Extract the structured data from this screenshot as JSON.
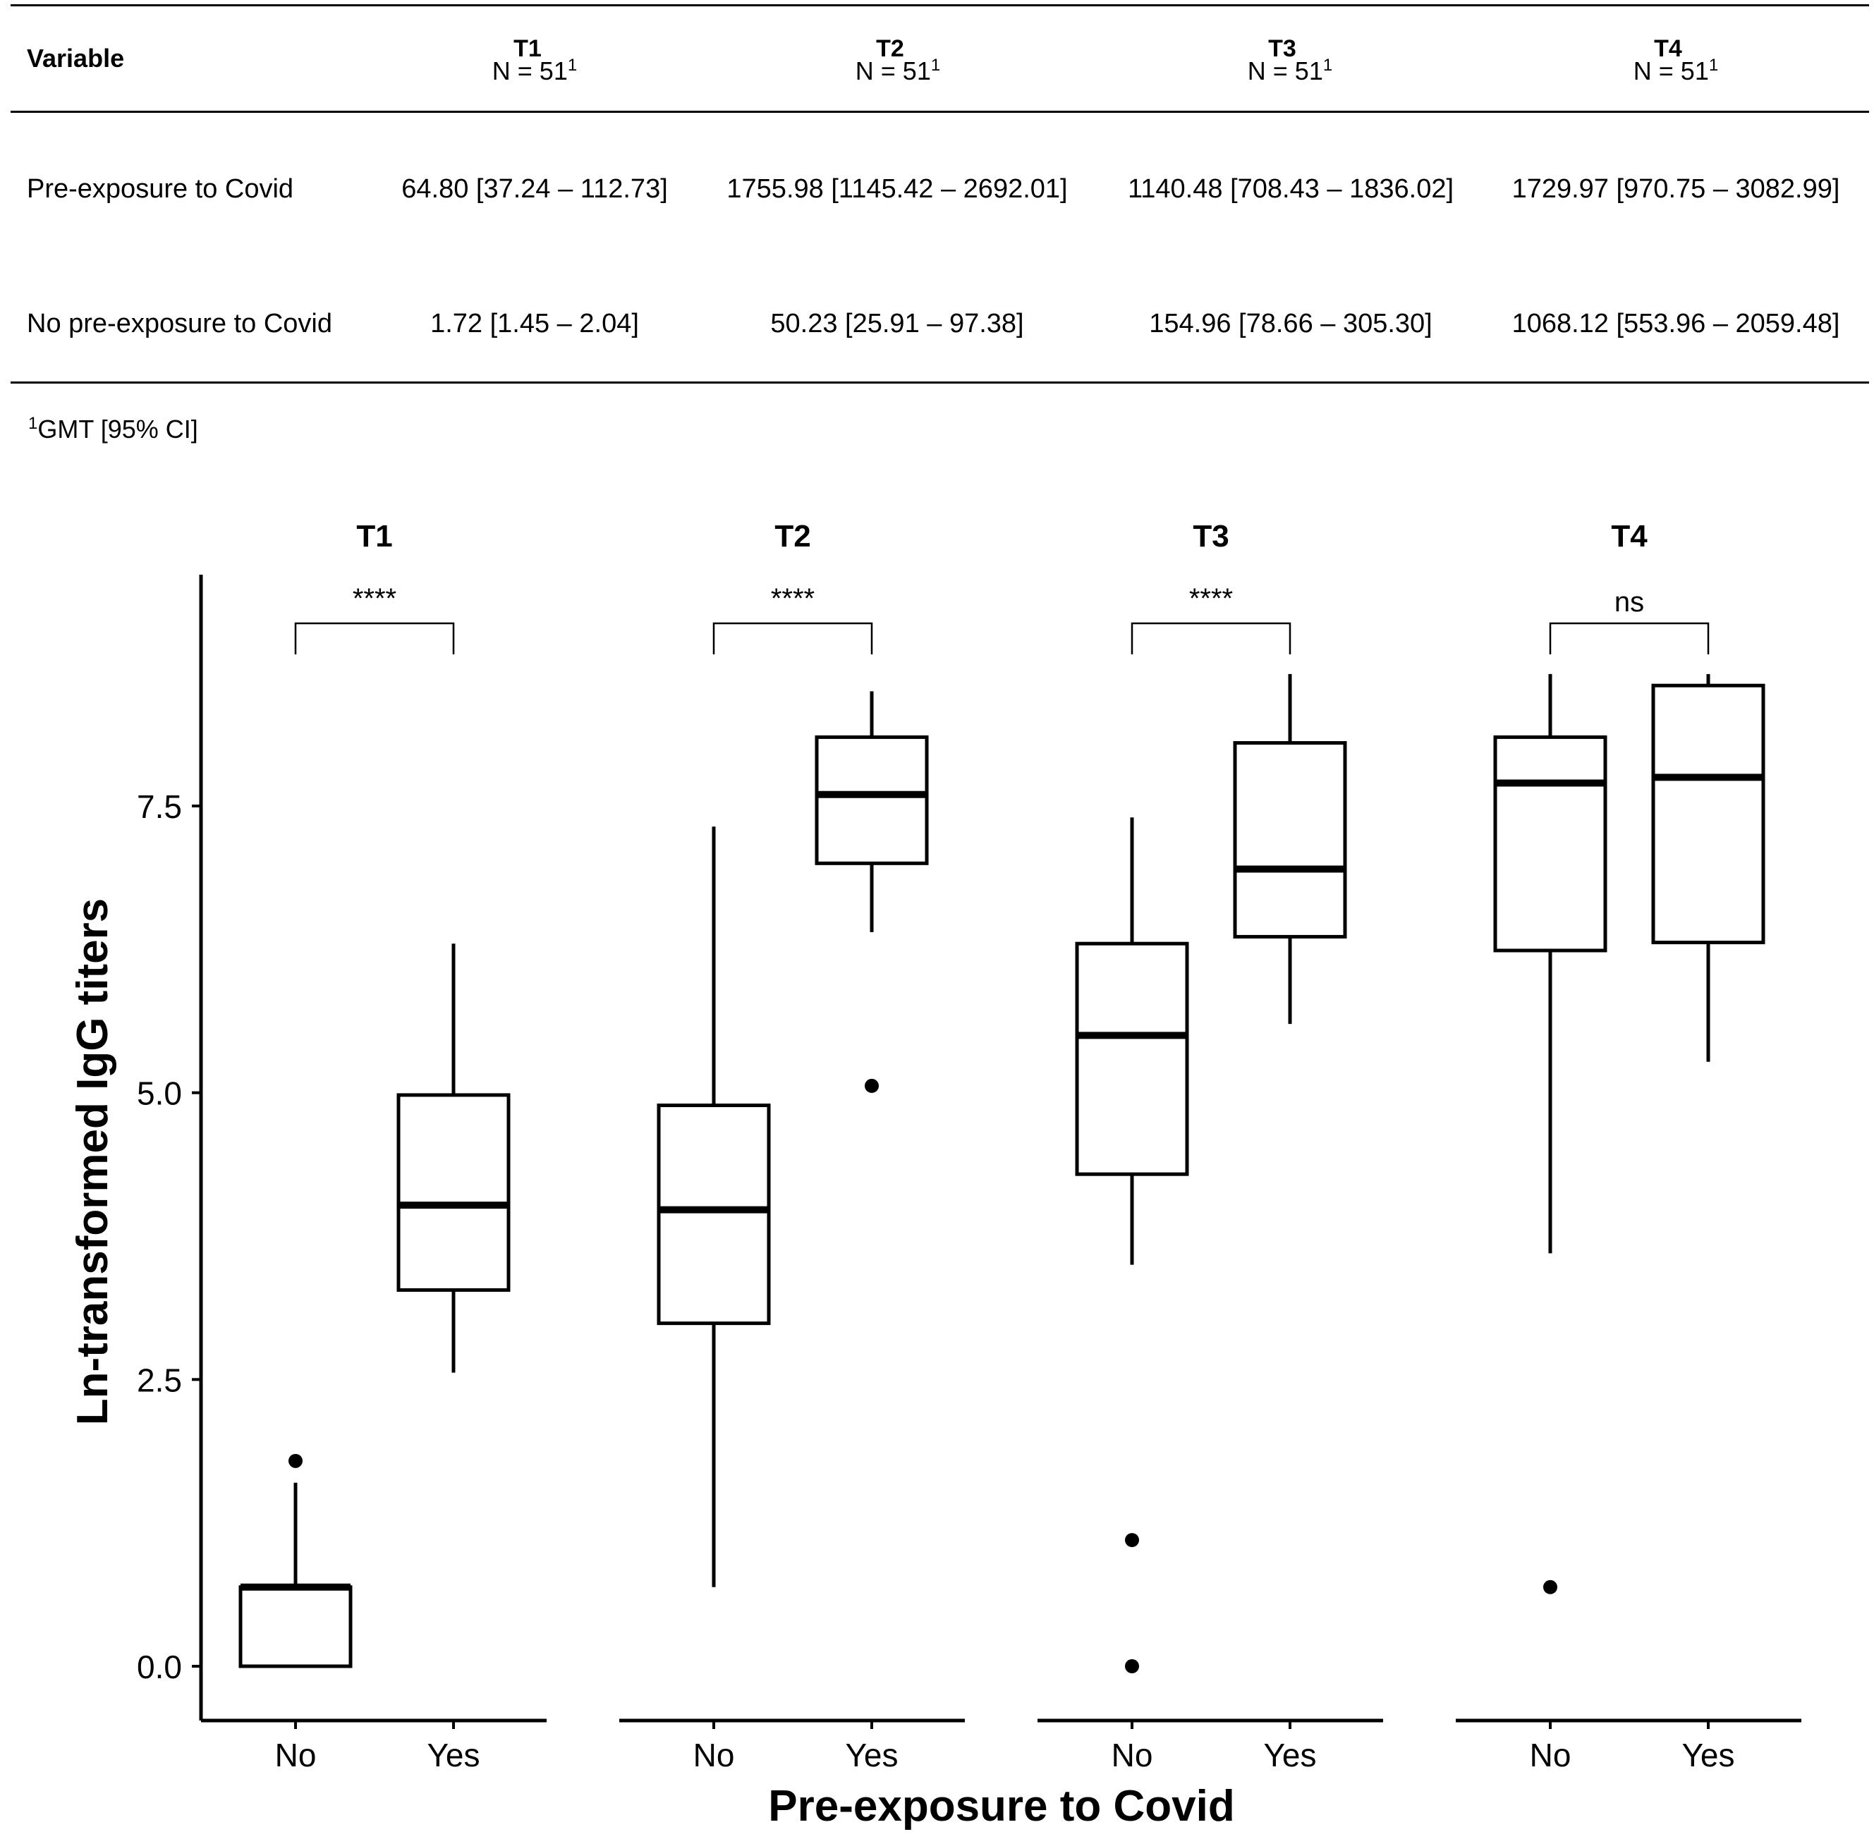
{
  "table": {
    "variable_header": "Variable",
    "n_text": "N = 51",
    "n_footnote_mark": "1",
    "groups": [
      "T1",
      "T2",
      "T3",
      "T4"
    ],
    "rows": [
      {
        "label": "Pre-exposure to Covid",
        "values": [
          "64.80 [37.24 – 112.73]",
          "1755.98 [1145.42 – 2692.01]",
          "1140.48 [708.43 – 1836.02]",
          "1729.97 [970.75 – 3082.99]"
        ]
      },
      {
        "label": "No pre-exposure to Covid",
        "values": [
          "1.72 [1.45 – 2.04]",
          "50.23 [25.91 – 97.38]",
          "154.96 [78.66 – 305.30]",
          "1068.12 [553.96 – 2059.48]"
        ]
      }
    ],
    "footnote_mark": "1",
    "footnote": "GMT [95% CI]"
  },
  "chart_data": {
    "type": "boxplot",
    "ylabel": "Ln-transformed IgG titers",
    "xlabel": "Pre-exposure to Covid",
    "ylim": [
      -0.45,
      9.55
    ],
    "yticks": [
      0.0,
      2.5,
      5.0,
      7.5
    ],
    "ytick_labels": [
      "0.0",
      "2.5",
      "5.0",
      "7.5"
    ],
    "categories": [
      "No",
      "Yes"
    ],
    "facets": [
      {
        "title": "T1",
        "significance": "****",
        "boxes": [
          {
            "category": "No",
            "whisker_low": 0.0,
            "q1": 0.0,
            "median": 0.69,
            "q3": 0.69,
            "whisker_high": 1.6,
            "outliers": [
              1.79
            ]
          },
          {
            "category": "Yes",
            "whisker_low": 2.56,
            "q1": 3.28,
            "median": 4.02,
            "q3": 4.98,
            "whisker_high": 6.3,
            "outliers": []
          }
        ]
      },
      {
        "title": "T2",
        "significance": "****",
        "boxes": [
          {
            "category": "No",
            "whisker_low": 0.69,
            "q1": 2.99,
            "median": 3.98,
            "q3": 4.89,
            "whisker_high": 7.32,
            "outliers": []
          },
          {
            "category": "Yes",
            "whisker_low": 6.4,
            "q1": 7.0,
            "median": 7.6,
            "q3": 8.1,
            "whisker_high": 8.5,
            "outliers": [
              5.06
            ]
          }
        ]
      },
      {
        "title": "T3",
        "significance": "****",
        "boxes": [
          {
            "category": "No",
            "whisker_low": 3.5,
            "q1": 4.29,
            "median": 5.5,
            "q3": 6.3,
            "whisker_high": 7.4,
            "outliers": [
              1.1,
              0.0
            ]
          },
          {
            "category": "Yes",
            "whisker_low": 5.6,
            "q1": 6.36,
            "median": 6.95,
            "q3": 8.05,
            "whisker_high": 8.65,
            "outliers": []
          }
        ]
      },
      {
        "title": "T4",
        "significance": "ns",
        "boxes": [
          {
            "category": "No",
            "whisker_low": 3.6,
            "q1": 6.24,
            "median": 7.7,
            "q3": 8.1,
            "whisker_high": 8.65,
            "outliers": [
              0.69
            ]
          },
          {
            "category": "Yes",
            "whisker_low": 5.27,
            "q1": 6.31,
            "median": 7.75,
            "q3": 8.55,
            "whisker_high": 8.65,
            "outliers": []
          }
        ]
      }
    ]
  }
}
